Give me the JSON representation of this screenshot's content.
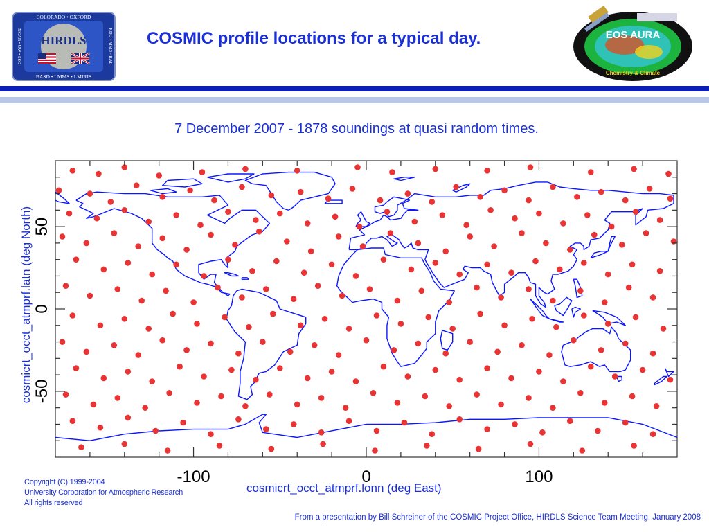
{
  "header": {
    "title": "COSMIC profile locations for a typical day.",
    "hirdls_logo": {
      "top_text": "COLORADO • OXFORD",
      "name": "HIRDLS",
      "bottom_text": "BASD • LMMS • LMIRIS",
      "left_text": "NCAR • UW • SSG",
      "right_text": "RDU • MMS • RAL"
    },
    "aura_logo": {
      "name": "EOS AURA",
      "tagline": "Chemistry & Climate"
    }
  },
  "subtitle": "7 December 2007 -  1878 soundings at quasi random times.",
  "chart_data": {
    "type": "scatter",
    "xlabel": "cosmicrt_occt_atmprf.lonn (deg East)",
    "ylabel": "cosmicrt_occt_atmprf.latn (deg North)",
    "xlim": [
      -180,
      180
    ],
    "ylim": [
      -90,
      90
    ],
    "x_ticks": [
      {
        "value": -100,
        "label": "-100"
      },
      {
        "value": 0,
        "label": "0"
      },
      {
        "value": 100,
        "label": "100"
      }
    ],
    "y_ticks": [
      {
        "value": 50,
        "label": "50"
      },
      {
        "value": 0,
        "label": "0"
      },
      {
        "value": -50,
        "label": "-50"
      }
    ],
    "x_minor_step": 20,
    "y_minor_step": 10,
    "point_count": 1878,
    "point_color": "#e83434",
    "coastline_color": "#0b16ff",
    "grid": false,
    "series": [
      {
        "points": [
          [
            -170,
            84
          ],
          [
            -155,
            82
          ],
          [
            -140,
            86
          ],
          [
            -120,
            81
          ],
          [
            -95,
            83
          ],
          [
            -70,
            85
          ],
          [
            -40,
            84
          ],
          [
            -5,
            86
          ],
          [
            15,
            83
          ],
          [
            40,
            85
          ],
          [
            70,
            84
          ],
          [
            95,
            86
          ],
          [
            130,
            83
          ],
          [
            155,
            85
          ],
          [
            175,
            82
          ],
          [
            -178,
            72
          ],
          [
            -160,
            70
          ],
          [
            -148,
            65
          ],
          [
            -133,
            75
          ],
          [
            -118,
            68
          ],
          [
            -102,
            72
          ],
          [
            -88,
            66
          ],
          [
            -72,
            74
          ],
          [
            -55,
            69
          ],
          [
            -38,
            71
          ],
          [
            -22,
            67
          ],
          [
            -8,
            73
          ],
          [
            8,
            66
          ],
          [
            24,
            70
          ],
          [
            38,
            65
          ],
          [
            52,
            74
          ],
          [
            66,
            68
          ],
          [
            80,
            72
          ],
          [
            94,
            66
          ],
          [
            108,
            74
          ],
          [
            122,
            68
          ],
          [
            136,
            71
          ],
          [
            150,
            66
          ],
          [
            164,
            73
          ],
          [
            176,
            67
          ],
          [
            -172,
            58
          ],
          [
            -156,
            55
          ],
          [
            -140,
            60
          ],
          [
            -126,
            53
          ],
          [
            -110,
            57
          ],
          [
            -96,
            51
          ],
          [
            -80,
            59
          ],
          [
            -64,
            54
          ],
          [
            -50,
            58
          ],
          [
            -34,
            52
          ],
          [
            -18,
            56
          ],
          [
            -4,
            50
          ],
          [
            12,
            59
          ],
          [
            28,
            53
          ],
          [
            44,
            57
          ],
          [
            58,
            51
          ],
          [
            72,
            60
          ],
          [
            86,
            55
          ],
          [
            100,
            58
          ],
          [
            114,
            52
          ],
          [
            128,
            57
          ],
          [
            142,
            50
          ],
          [
            156,
            59
          ],
          [
            170,
            54
          ],
          [
            -176,
            44
          ],
          [
            -162,
            40
          ],
          [
            -146,
            46
          ],
          [
            -132,
            38
          ],
          [
            -118,
            43
          ],
          [
            -104,
            36
          ],
          [
            -90,
            45
          ],
          [
            -76,
            39
          ],
          [
            -62,
            47
          ],
          [
            -46,
            41
          ],
          [
            -32,
            35
          ],
          [
            -16,
            44
          ],
          [
            -2,
            38
          ],
          [
            14,
            46
          ],
          [
            30,
            40
          ],
          [
            46,
            35
          ],
          [
            60,
            44
          ],
          [
            74,
            38
          ],
          [
            90,
            46
          ],
          [
            104,
            40
          ],
          [
            118,
            36
          ],
          [
            132,
            45
          ],
          [
            148,
            39
          ],
          [
            162,
            46
          ],
          [
            178,
            41
          ],
          [
            -168,
            30
          ],
          [
            -152,
            24
          ],
          [
            -138,
            28
          ],
          [
            -124,
            21
          ],
          [
            -110,
            27
          ],
          [
            -94,
            20
          ],
          [
            -80,
            30
          ],
          [
            -66,
            23
          ],
          [
            -52,
            29
          ],
          [
            -36,
            22
          ],
          [
            -20,
            27
          ],
          [
            -6,
            20
          ],
          [
            10,
            30
          ],
          [
            26,
            24
          ],
          [
            40,
            28
          ],
          [
            54,
            21
          ],
          [
            70,
            27
          ],
          [
            84,
            22
          ],
          [
            98,
            29
          ],
          [
            112,
            24
          ],
          [
            126,
            28
          ],
          [
            140,
            21
          ],
          [
            154,
            27
          ],
          [
            170,
            23
          ],
          [
            -174,
            14
          ],
          [
            -160,
            8
          ],
          [
            -144,
            12
          ],
          [
            -130,
            5
          ],
          [
            -116,
            11
          ],
          [
            -100,
            4
          ],
          [
            -86,
            13
          ],
          [
            -72,
            7
          ],
          [
            -58,
            12
          ],
          [
            -42,
            6
          ],
          [
            -28,
            14
          ],
          [
            -14,
            8
          ],
          [
            2,
            12
          ],
          [
            18,
            5
          ],
          [
            32,
            11
          ],
          [
            48,
            4
          ],
          [
            64,
            13
          ],
          [
            78,
            7
          ],
          [
            94,
            12
          ],
          [
            108,
            5
          ],
          [
            124,
            11
          ],
          [
            138,
            4
          ],
          [
            152,
            13
          ],
          [
            166,
            7
          ],
          [
            -170,
            -4
          ],
          [
            -154,
            -10
          ],
          [
            -140,
            -6
          ],
          [
            -126,
            -12
          ],
          [
            -112,
            -3
          ],
          [
            -98,
            -9
          ],
          [
            -82,
            -5
          ],
          [
            -68,
            -11
          ],
          [
            -54,
            -3
          ],
          [
            -38,
            -10
          ],
          [
            -24,
            -6
          ],
          [
            -10,
            -12
          ],
          [
            6,
            -4
          ],
          [
            20,
            -9
          ],
          [
            36,
            -5
          ],
          [
            50,
            -12
          ],
          [
            66,
            -3
          ],
          [
            80,
            -10
          ],
          [
            96,
            -6
          ],
          [
            110,
            -11
          ],
          [
            126,
            -4
          ],
          [
            140,
            -9
          ],
          [
            156,
            -5
          ],
          [
            172,
            -12
          ],
          [
            -176,
            -20
          ],
          [
            -162,
            -26
          ],
          [
            -146,
            -22
          ],
          [
            -132,
            -28
          ],
          [
            -118,
            -19
          ],
          [
            -104,
            -25
          ],
          [
            -90,
            -21
          ],
          [
            -74,
            -27
          ],
          [
            -60,
            -20
          ],
          [
            -44,
            -26
          ],
          [
            -30,
            -22
          ],
          [
            -16,
            -28
          ],
          [
            0,
            -19
          ],
          [
            16,
            -25
          ],
          [
            30,
            -21
          ],
          [
            46,
            -27
          ],
          [
            60,
            -20
          ],
          [
            76,
            -26
          ],
          [
            90,
            -22
          ],
          [
            106,
            -28
          ],
          [
            120,
            -19
          ],
          [
            136,
            -25
          ],
          [
            150,
            -21
          ],
          [
            166,
            -27
          ],
          [
            -168,
            -36
          ],
          [
            -152,
            -42
          ],
          [
            -138,
            -38
          ],
          [
            -124,
            -44
          ],
          [
            -108,
            -35
          ],
          [
            -94,
            -41
          ],
          [
            -78,
            -37
          ],
          [
            -64,
            -43
          ],
          [
            -50,
            -36
          ],
          [
            -34,
            -42
          ],
          [
            -20,
            -38
          ],
          [
            -6,
            -44
          ],
          [
            10,
            -35
          ],
          [
            24,
            -41
          ],
          [
            40,
            -37
          ],
          [
            54,
            -43
          ],
          [
            70,
            -36
          ],
          [
            84,
            -42
          ],
          [
            100,
            -38
          ],
          [
            114,
            -44
          ],
          [
            130,
            -35
          ],
          [
            144,
            -41
          ],
          [
            160,
            -37
          ],
          [
            176,
            -43
          ],
          [
            -174,
            -52
          ],
          [
            -158,
            -58
          ],
          [
            -144,
            -54
          ],
          [
            -128,
            -60
          ],
          [
            -114,
            -51
          ],
          [
            -98,
            -57
          ],
          [
            -84,
            -53
          ],
          [
            -70,
            -59
          ],
          [
            -56,
            -52
          ],
          [
            -40,
            -58
          ],
          [
            -26,
            -54
          ],
          [
            -12,
            -60
          ],
          [
            4,
            -51
          ],
          [
            18,
            -57
          ],
          [
            34,
            -53
          ],
          [
            48,
            -59
          ],
          [
            64,
            -52
          ],
          [
            78,
            -58
          ],
          [
            94,
            -54
          ],
          [
            108,
            -60
          ],
          [
            124,
            -51
          ],
          [
            138,
            -57
          ],
          [
            154,
            -53
          ],
          [
            168,
            -59
          ],
          [
            -170,
            -68
          ],
          [
            -154,
            -72
          ],
          [
            -138,
            -66
          ],
          [
            -122,
            -74
          ],
          [
            -106,
            -69
          ],
          [
            -90,
            -76
          ],
          [
            -74,
            -67
          ],
          [
            -58,
            -73
          ],
          [
            -42,
            -70
          ],
          [
            -26,
            -75
          ],
          [
            -10,
            -68
          ],
          [
            6,
            -74
          ],
          [
            22,
            -69
          ],
          [
            38,
            -76
          ],
          [
            54,
            -67
          ],
          [
            70,
            -73
          ],
          [
            86,
            -70
          ],
          [
            102,
            -75
          ],
          [
            118,
            -68
          ],
          [
            134,
            -74
          ],
          [
            150,
            -69
          ],
          [
            166,
            -76
          ],
          [
            -165,
            -84
          ],
          [
            -140,
            -82
          ],
          [
            -115,
            -86
          ],
          [
            -85,
            -83
          ],
          [
            -55,
            -85
          ],
          [
            -25,
            -82
          ],
          [
            5,
            -86
          ],
          [
            35,
            -83
          ],
          [
            65,
            -85
          ],
          [
            95,
            -82
          ],
          [
            125,
            -86
          ],
          [
            155,
            -83
          ]
        ]
      }
    ]
  },
  "footer": {
    "copyright": [
      "Copyright (C) 1999-2004",
      "University Corporation for Atmospheric Research",
      "All rights reserved"
    ],
    "source": "From a presentation by Bill Schreiner of the COSMIC Project Office, HIRDLS Science Team Meeting, January 2008"
  }
}
